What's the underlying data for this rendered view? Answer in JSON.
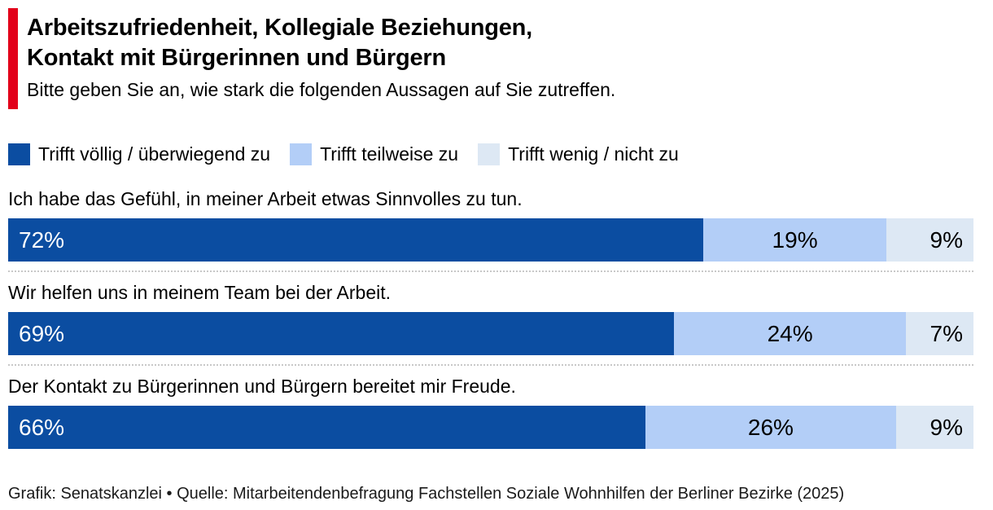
{
  "header": {
    "accent_color": "#e2001a",
    "title_line1": "Arbeitszufriedenheit, Kollegiale Beziehungen,",
    "title_line2": "Kontakt mit Bürgerinnen und Bürgern",
    "subtitle": "Bitte geben Sie an, wie stark die folgenden Aussagen auf Sie zutreffen."
  },
  "colors": {
    "agree": "#0b4da1",
    "partial": "#b3cef7",
    "disagree": "#dde8f4"
  },
  "legend": {
    "items": [
      {
        "label": "Trifft völlig / überwiegend zu",
        "color": "#0b4da1"
      },
      {
        "label": "Trifft teilweise zu",
        "color": "#b3cef7"
      },
      {
        "label": "Trifft wenig / nicht zu",
        "color": "#dde8f4"
      }
    ]
  },
  "rows": [
    {
      "question": "Ich habe das Gefühl, in meiner Arbeit etwas Sinnvolles zu tun.",
      "segments": [
        {
          "text": "72%",
          "value": 72
        },
        {
          "text": "19%",
          "value": 19
        },
        {
          "text": "9%",
          "value": 9
        }
      ]
    },
    {
      "question": "Wir helfen uns in meinem Team bei der Arbeit.",
      "segments": [
        {
          "text": "69%",
          "value": 69
        },
        {
          "text": "24%",
          "value": 24
        },
        {
          "text": "7%",
          "value": 7
        }
      ]
    },
    {
      "question": "Der Kontakt zu Bürgerinnen und Bürgern bereitet mir Freude.",
      "segments": [
        {
          "text": "66%",
          "value": 66
        },
        {
          "text": "26%",
          "value": 26
        },
        {
          "text": "9%",
          "value": 9
        }
      ]
    }
  ],
  "footer": {
    "text": "Grafik: Senatskanzlei • Quelle: Mitarbeitendenbefragung Fachstellen Soziale Wohnhilfen der Berliner Bezirke (2025)"
  },
  "chart_data": {
    "type": "bar",
    "orientation": "horizontal",
    "stacked": true,
    "title": "Arbeitszufriedenheit, Kollegiale Beziehungen, Kontakt mit Bürgerinnen und Bürgern",
    "subtitle": "Bitte geben Sie an, wie stark die folgenden Aussagen auf Sie zutreffen.",
    "categories": [
      "Ich habe das Gefühl, in meiner Arbeit etwas Sinnvolles zu tun.",
      "Wir helfen uns in meinem Team bei der Arbeit.",
      "Der Kontakt zu Bürgerinnen und Bürgern bereitet mir Freude."
    ],
    "series": [
      {
        "name": "Trifft völlig / überwiegend zu",
        "values": [
          72,
          69,
          66
        ],
        "color": "#0b4da1"
      },
      {
        "name": "Trifft teilweise zu",
        "values": [
          19,
          24,
          26
        ],
        "color": "#b3cef7"
      },
      {
        "name": "Trifft wenig / nicht zu",
        "values": [
          9,
          7,
          9
        ],
        "color": "#dde8f4"
      }
    ],
    "unit": "%",
    "xlim": [
      0,
      100
    ],
    "grid": false,
    "legend_position": "top",
    "value_labels": "inside",
    "source": "Grafik: Senatskanzlei • Quelle: Mitarbeitendenbefragung Fachstellen Soziale Wohnhilfen der Berliner Bezirke (2025)"
  }
}
